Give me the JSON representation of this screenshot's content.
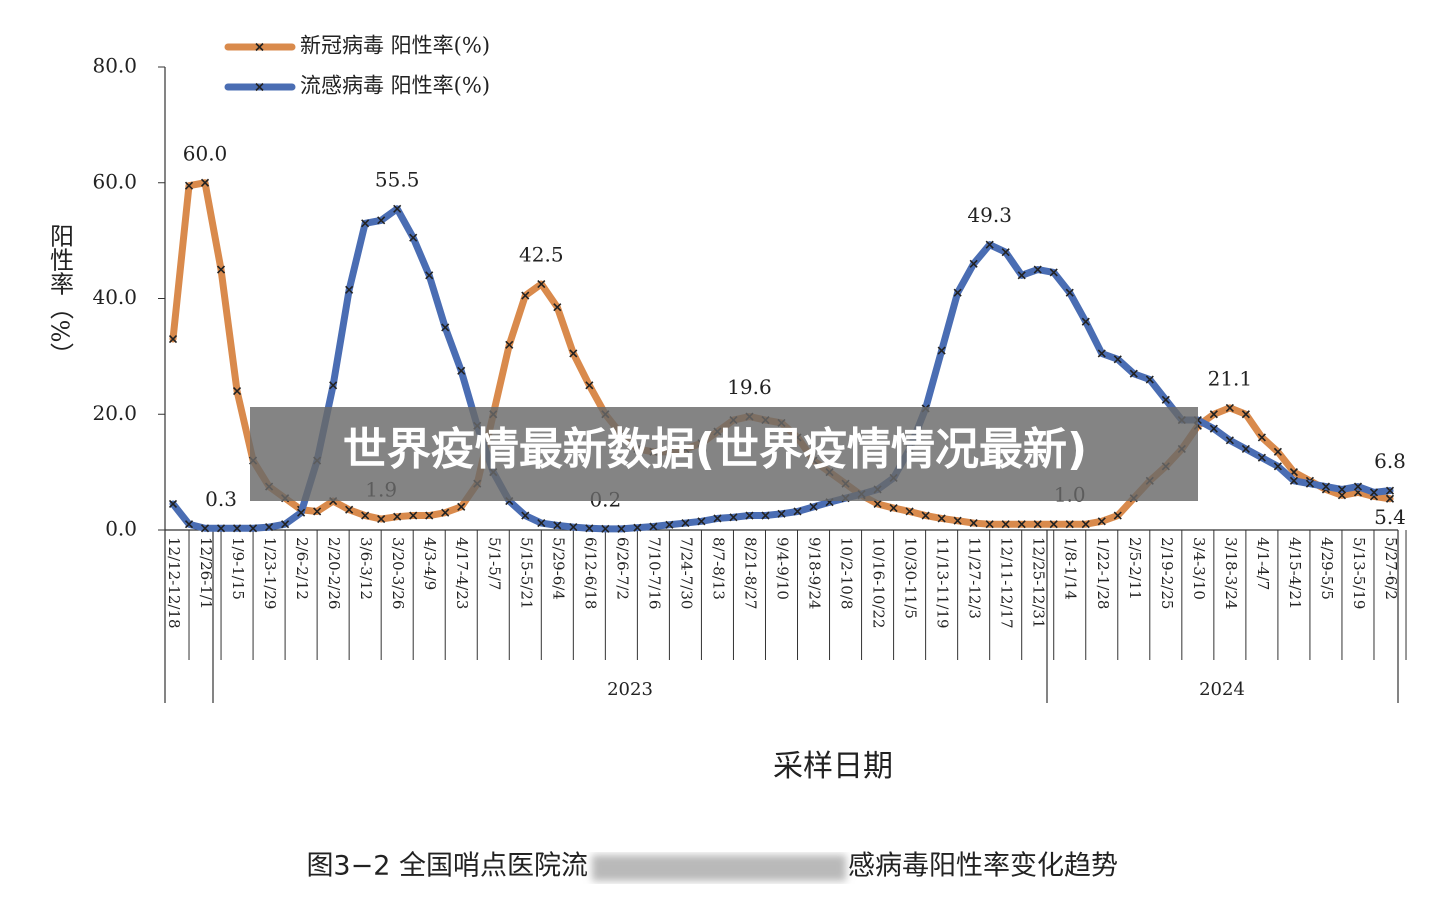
{
  "chart_data": {
    "type": "line",
    "legend": "top-left",
    "y_label": "阳性率（%）",
    "x_label": "采样日期",
    "caption_parts": [
      "图3−2 全国哨点医院流",
      "感病毒阳性率变化趋势"
    ],
    "banner": "世界疫情最新数据(世界疫情情况最新)",
    "year_labels": [
      "2023",
      "2024"
    ],
    "ylim": [
      0,
      80
    ],
    "yticks": [
      {
        "value": 0,
        "label": "0.0"
      },
      {
        "value": 20,
        "label": "20.0"
      },
      {
        "value": 40,
        "label": "40.0"
      },
      {
        "value": 60,
        "label": "60.0"
      },
      {
        "value": 80,
        "label": "80.0"
      }
    ],
    "categories": [
      "12/12-12/18",
      null,
      "12/26-1/1",
      null,
      "1/9-1/15",
      null,
      "1/23-1/29",
      null,
      "2/6-2/12",
      null,
      "2/20-2/26",
      null,
      "3/6-3/12",
      null,
      "3/20-3/26",
      null,
      "4/3-4/9",
      null,
      "4/17-4/23",
      null,
      "5/1-5/7",
      null,
      "5/15-5/21",
      null,
      "5/29-6/4",
      null,
      "6/12-6/18",
      null,
      "6/26-7/2",
      null,
      "7/10-7/16",
      null,
      "7/24-7/30",
      null,
      "8/7-8/13",
      null,
      "8/21-8/27",
      null,
      "9/4-9/10",
      null,
      "9/18-9/24",
      null,
      "10/2-10/8",
      null,
      "10/16-10/22",
      null,
      "10/30-11/5",
      null,
      "11/13-11/19",
      null,
      "11/27-12/3",
      null,
      "12/11-12/17",
      null,
      "12/25-12/31",
      null,
      "1/8-1/14",
      null,
      "1/22-1/28",
      null,
      "2/5-2/11",
      null,
      "2/19-2/25",
      null,
      "3/4-3/10",
      null,
      "3/18-3/24",
      null,
      "4/1-4/7",
      null,
      "4/15-4/21",
      null,
      "4/29-5/5",
      null,
      "5/13-5/19",
      null,
      "5/27-6/2"
    ],
    "series": [
      {
        "name": "新冠病毒 阳性率(%)",
        "color": "#d98a4c",
        "values": [
          33,
          59.5,
          60,
          45,
          24,
          12,
          7.5,
          5.5,
          3.5,
          3.2,
          5,
          3.5,
          2.5,
          1.9,
          2.3,
          2.5,
          2.5,
          3,
          4,
          8,
          20,
          32,
          40.5,
          42.5,
          38.5,
          30.5,
          25,
          20,
          16.5,
          14,
          13.5,
          13.5,
          14,
          15,
          17,
          19,
          19.6,
          19,
          18.5,
          16,
          12,
          10,
          8,
          6,
          4.5,
          3.8,
          3.2,
          2.5,
          2,
          1.6,
          1.2,
          1,
          1,
          1,
          1,
          1,
          1,
          1,
          1.5,
          2.5,
          5.5,
          8.5,
          11,
          14,
          18,
          20,
          21.1,
          20,
          16,
          13.5,
          10,
          8.5,
          7,
          6,
          6.5,
          5.8,
          5.4
        ],
        "value_labels": [
          null,
          null,
          "60.0",
          null,
          null,
          null,
          null,
          null,
          null,
          null,
          null,
          null,
          null,
          "1.9",
          null,
          null,
          null,
          null,
          null,
          null,
          null,
          null,
          null,
          "42.5",
          null,
          null,
          null,
          null,
          null,
          null,
          null,
          null,
          null,
          null,
          null,
          null,
          "19.6",
          null,
          null,
          null,
          null,
          null,
          null,
          null,
          null,
          null,
          null,
          null,
          null,
          null,
          null,
          null,
          null,
          null,
          null,
          null,
          "1.0",
          null,
          null,
          null,
          null,
          null,
          null,
          null,
          null,
          null,
          "21.1",
          null,
          null,
          null,
          null,
          null,
          null,
          null,
          null,
          null,
          "5.4"
        ]
      },
      {
        "name": "流感病毒 阳性率(%)",
        "color": "#4a6db3",
        "values": [
          4.5,
          1,
          0.3,
          0.3,
          0.3,
          0.3,
          0.5,
          1,
          3,
          12,
          25,
          41.5,
          53,
          53.5,
          55.5,
          50.5,
          44,
          35,
          27.5,
          18,
          10,
          5,
          2.5,
          1.2,
          0.8,
          0.5,
          0.3,
          0.2,
          0.2,
          0.4,
          0.6,
          0.9,
          1.2,
          1.5,
          2,
          2.2,
          2.5,
          2.5,
          2.8,
          3.2,
          4,
          4.8,
          5.5,
          6.2,
          7,
          9,
          14,
          21,
          31,
          41,
          46,
          49.3,
          48,
          44,
          45,
          44.5,
          41,
          36,
          30.5,
          29.5,
          27,
          26,
          22.5,
          19,
          19,
          17.5,
          15.5,
          14,
          12.5,
          11,
          8.5,
          8,
          7.5,
          7,
          7.5,
          6.5,
          6.8
        ],
        "value_labels": [
          null,
          null,
          null,
          "0.3",
          null,
          null,
          null,
          null,
          null,
          null,
          null,
          null,
          null,
          null,
          "55.5",
          null,
          null,
          null,
          null,
          null,
          null,
          null,
          null,
          null,
          null,
          null,
          null,
          "0.2",
          null,
          null,
          null,
          null,
          null,
          null,
          null,
          null,
          null,
          null,
          null,
          null,
          null,
          null,
          null,
          null,
          null,
          null,
          null,
          null,
          null,
          null,
          null,
          "49.3",
          null,
          null,
          null,
          null,
          null,
          null,
          null,
          null,
          null,
          null,
          null,
          null,
          null,
          null,
          null,
          null,
          null,
          null,
          null,
          null,
          null,
          null,
          null,
          null,
          "6.8"
        ]
      }
    ]
  }
}
